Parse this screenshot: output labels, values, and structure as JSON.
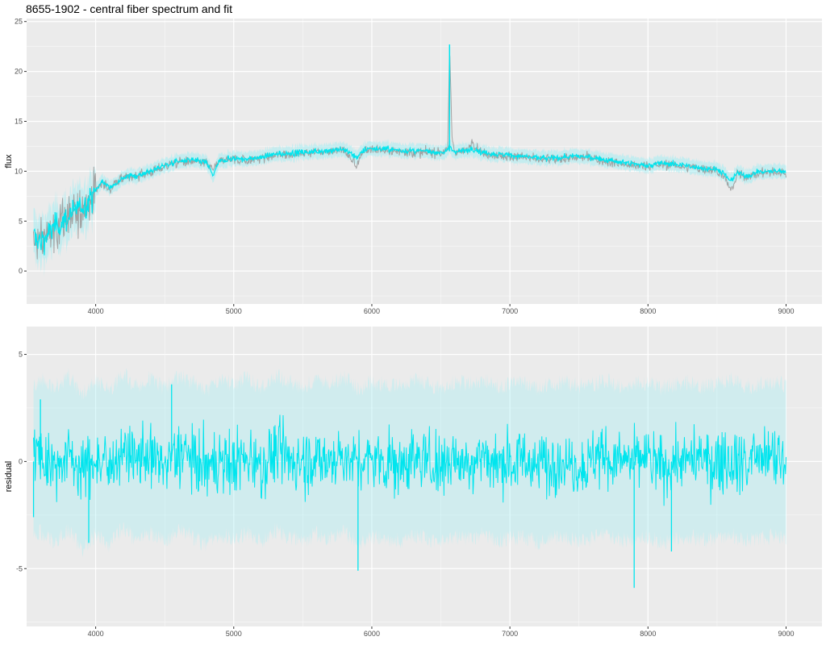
{
  "title": "8655-1902 - central fiber spectrum and fit",
  "colors": {
    "panel_bg": "#ebebeb",
    "grid_major": "#ffffff",
    "observed": "#a3a3a3",
    "fit": "#00e5ee",
    "error_band": "#9eeef3",
    "tick_text": "#4d4d4d"
  },
  "chart_data": [
    {
      "type": "line",
      "panel": "top",
      "xlabel": "",
      "ylabel": "flux",
      "xlim": [
        3500,
        9260
      ],
      "ylim": [
        -3.3,
        25.3
      ],
      "x_ticks": [
        4000,
        5000,
        6000,
        7000,
        8000,
        9000
      ],
      "x_tick_labels": [
        "4000",
        "5000",
        "6000",
        "7000",
        "8000",
        "9000"
      ],
      "y_ticks": [
        0,
        5,
        10,
        15,
        20,
        25
      ],
      "y_tick_labels": [
        "0",
        "5",
        "10",
        "15",
        "20",
        "25"
      ],
      "grid": true,
      "x": [
        3550,
        3600,
        3650,
        3700,
        3750,
        3800,
        3850,
        3900,
        3950,
        4000,
        4050,
        4100,
        4150,
        4200,
        4300,
        4400,
        4500,
        4600,
        4700,
        4800,
        4850,
        4900,
        5000,
        5100,
        5200,
        5300,
        5400,
        5500,
        5600,
        5700,
        5800,
        5890,
        5950,
        6000,
        6100,
        6200,
        6300,
        6400,
        6500,
        6550,
        6563,
        6580,
        6600,
        6700,
        6720,
        6800,
        6900,
        7000,
        7100,
        7200,
        7300,
        7400,
        7500,
        7600,
        7700,
        7800,
        7900,
        8000,
        8100,
        8200,
        8300,
        8400,
        8500,
        8550,
        8600,
        8650,
        8700,
        8800,
        8900,
        9000
      ],
      "series": [
        {
          "role": "observed",
          "values": [
            3.2,
            2.8,
            3.5,
            4.2,
            4.8,
            5.3,
            5.8,
            6.3,
            6.9,
            8.0,
            8.9,
            8.2,
            8.8,
            9.3,
            9.5,
            9.9,
            10.5,
            10.9,
            11.0,
            10.8,
            10.2,
            11.0,
            11.2,
            11.1,
            11.3,
            11.6,
            11.7,
            11.8,
            11.9,
            12.0,
            12.1,
            10.5,
            12.1,
            12.2,
            12.1,
            12.0,
            11.9,
            11.9,
            11.8,
            12.2,
            22.7,
            13.5,
            11.9,
            12.0,
            13.0,
            11.8,
            11.6,
            11.5,
            11.4,
            11.2,
            11.2,
            11.3,
            11.4,
            11.3,
            11.0,
            10.8,
            10.6,
            10.5,
            10.7,
            10.6,
            10.4,
            10.2,
            10.1,
            9.6,
            8.0,
            9.8,
            9.4,
            9.8,
            9.9,
            9.9
          ]
        },
        {
          "role": "fit",
          "values": [
            3.4,
            3.0,
            3.6,
            4.3,
            4.9,
            5.4,
            5.9,
            6.4,
            7.0,
            8.1,
            9.0,
            8.3,
            8.9,
            9.4,
            9.6,
            10.0,
            10.6,
            11.0,
            11.1,
            10.9,
            9.6,
            11.1,
            11.3,
            11.2,
            11.4,
            11.7,
            11.8,
            11.9,
            12.0,
            12.1,
            12.2,
            11.4,
            12.2,
            12.3,
            12.2,
            12.1,
            12.0,
            12.0,
            11.9,
            12.0,
            12.6,
            12.2,
            12.0,
            12.1,
            12.3,
            11.9,
            11.7,
            11.6,
            11.5,
            11.3,
            11.3,
            11.4,
            11.5,
            11.4,
            11.1,
            10.9,
            10.7,
            10.6,
            10.8,
            10.7,
            10.5,
            10.3,
            10.2,
            9.7,
            9.0,
            9.9,
            9.5,
            9.9,
            10.0,
            10.0
          ]
        }
      ]
    },
    {
      "type": "line",
      "panel": "bottom",
      "xlabel": "",
      "ylabel": "residual",
      "xlim": [
        3500,
        9260
      ],
      "ylim": [
        -7.7,
        6.3
      ],
      "x_ticks": [
        4000,
        5000,
        6000,
        7000,
        8000,
        9000
      ],
      "x_tick_labels": [
        "4000",
        "5000",
        "6000",
        "7000",
        "8000",
        "9000"
      ],
      "y_ticks": [
        -5,
        0,
        5
      ],
      "y_tick_labels": [
        "-5",
        "0",
        "5"
      ],
      "grid": true,
      "x": [
        3550,
        3600,
        3700,
        3800,
        3900,
        4000,
        4100,
        4200,
        4300,
        4400,
        4500,
        4600,
        4700,
        4800,
        4900,
        5000,
        5100,
        5200,
        5300,
        5400,
        5500,
        5600,
        5700,
        5800,
        5900,
        6000,
        6100,
        6200,
        6300,
        6400,
        6500,
        6600,
        6700,
        6800,
        6900,
        7000,
        7100,
        7200,
        7300,
        7400,
        7500,
        7600,
        7700,
        7800,
        7900,
        8000,
        8100,
        8200,
        8300,
        8400,
        8500,
        8600,
        8700,
        8800,
        8900,
        9000
      ],
      "series": [
        {
          "role": "residual",
          "values": [
            0.0,
            0.3,
            -0.2,
            0.4,
            -0.5,
            0.2,
            -0.3,
            0.5,
            -0.1,
            0.3,
            -0.2,
            0.4,
            0.1,
            -0.3,
            0.2,
            0.0,
            0.3,
            -0.2,
            0.4,
            0.1,
            -0.1,
            0.2,
            0.0,
            0.3,
            -0.2,
            0.1,
            0.0,
            -0.1,
            0.2,
            0.0,
            -0.2,
            0.1,
            0.0,
            0.2,
            -0.1,
            0.0,
            0.1,
            -0.2,
            0.0,
            0.1,
            -0.1,
            0.0,
            0.2,
            -0.1,
            0.0,
            0.1,
            -0.2,
            0.0,
            0.1,
            -0.1,
            0.0,
            0.2,
            -0.1,
            0.0,
            0.1,
            0.0
          ]
        }
      ],
      "annotations": [
        {
          "x": 3550,
          "y": -2.6
        },
        {
          "x": 3600,
          "y": 2.9
        },
        {
          "x": 3950,
          "y": -3.8
        },
        {
          "x": 4550,
          "y": 3.6
        },
        {
          "x": 5900,
          "y": -5.1
        },
        {
          "x": 7900,
          "y": -5.9
        },
        {
          "x": 8170,
          "y": -4.2
        }
      ]
    }
  ]
}
